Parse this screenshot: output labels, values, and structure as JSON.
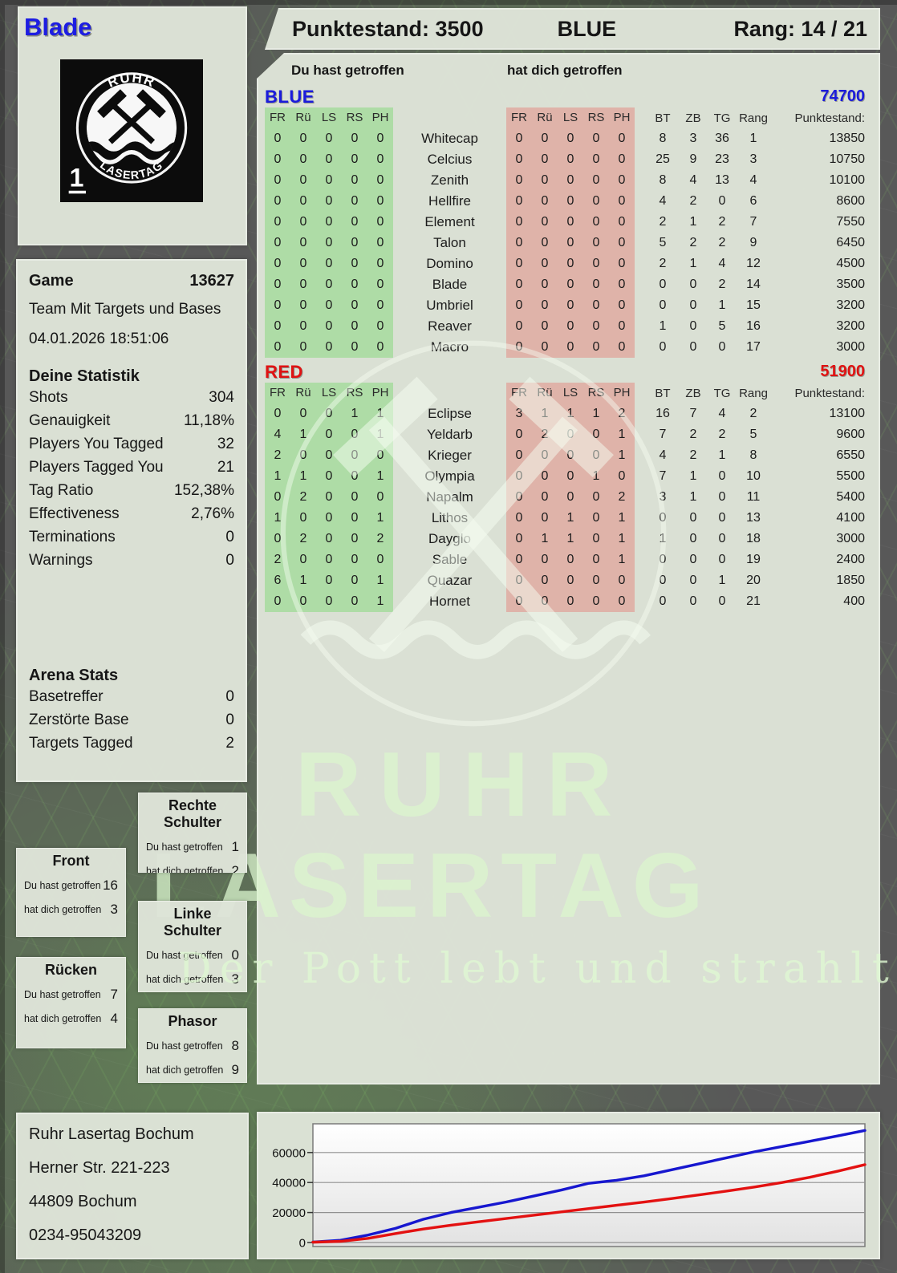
{
  "player": {
    "name": "Blade"
  },
  "logo": {
    "arc_top": "RUHR",
    "arc_bottom": "LASERTAG",
    "badge": "1"
  },
  "header": {
    "punktestand": "Punktestand: 3500",
    "team": "BLUE",
    "rang": "Rang: 14 / 21"
  },
  "captions": {
    "given": "Du hast getroffen",
    "taken": "hat dich getroffen"
  },
  "hit_columns": [
    "FR",
    "Rü",
    "LS",
    "RS",
    "PH"
  ],
  "score_columns": {
    "bt": "BT",
    "zb": "ZB",
    "tg": "TG",
    "rang": "Rang",
    "punkte": "Punktestand:"
  },
  "teams": [
    {
      "name": "BLUE",
      "color": "#1b1bdc",
      "total": "74700",
      "rows": [
        {
          "given": [
            0,
            0,
            0,
            0,
            0
          ],
          "name": "Whitecap",
          "taken": [
            0,
            0,
            0,
            0,
            0
          ],
          "bt": 8,
          "zb": 3,
          "tg": 36,
          "rang": 1,
          "punkte": "13850"
        },
        {
          "given": [
            0,
            0,
            0,
            0,
            0
          ],
          "name": "Celcius",
          "taken": [
            0,
            0,
            0,
            0,
            0
          ],
          "bt": 25,
          "zb": 9,
          "tg": 23,
          "rang": 3,
          "punkte": "10750"
        },
        {
          "given": [
            0,
            0,
            0,
            0,
            0
          ],
          "name": "Zenith",
          "taken": [
            0,
            0,
            0,
            0,
            0
          ],
          "bt": 8,
          "zb": 4,
          "tg": 13,
          "rang": 4,
          "punkte": "10100"
        },
        {
          "given": [
            0,
            0,
            0,
            0,
            0
          ],
          "name": "Hellfire",
          "taken": [
            0,
            0,
            0,
            0,
            0
          ],
          "bt": 4,
          "zb": 2,
          "tg": 0,
          "rang": 6,
          "punkte": "8600"
        },
        {
          "given": [
            0,
            0,
            0,
            0,
            0
          ],
          "name": "Element",
          "taken": [
            0,
            0,
            0,
            0,
            0
          ],
          "bt": 2,
          "zb": 1,
          "tg": 2,
          "rang": 7,
          "punkte": "7550"
        },
        {
          "given": [
            0,
            0,
            0,
            0,
            0
          ],
          "name": "Talon",
          "taken": [
            0,
            0,
            0,
            0,
            0
          ],
          "bt": 5,
          "zb": 2,
          "tg": 2,
          "rang": 9,
          "punkte": "6450"
        },
        {
          "given": [
            0,
            0,
            0,
            0,
            0
          ],
          "name": "Domino",
          "taken": [
            0,
            0,
            0,
            0,
            0
          ],
          "bt": 2,
          "zb": 1,
          "tg": 4,
          "rang": 12,
          "punkte": "4500"
        },
        {
          "given": [
            0,
            0,
            0,
            0,
            0
          ],
          "name": "Blade",
          "taken": [
            0,
            0,
            0,
            0,
            0
          ],
          "bt": 0,
          "zb": 0,
          "tg": 2,
          "rang": 14,
          "punkte": "3500"
        },
        {
          "given": [
            0,
            0,
            0,
            0,
            0
          ],
          "name": "Umbriel",
          "taken": [
            0,
            0,
            0,
            0,
            0
          ],
          "bt": 0,
          "zb": 0,
          "tg": 1,
          "rang": 15,
          "punkte": "3200"
        },
        {
          "given": [
            0,
            0,
            0,
            0,
            0
          ],
          "name": "Reaver",
          "taken": [
            0,
            0,
            0,
            0,
            0
          ],
          "bt": 1,
          "zb": 0,
          "tg": 5,
          "rang": 16,
          "punkte": "3200"
        },
        {
          "given": [
            0,
            0,
            0,
            0,
            0
          ],
          "name": "Macro",
          "taken": [
            0,
            0,
            0,
            0,
            0
          ],
          "bt": 0,
          "zb": 0,
          "tg": 0,
          "rang": 17,
          "punkte": "3000"
        }
      ]
    },
    {
      "name": "RED",
      "color": "#e01212",
      "total": "51900",
      "rows": [
        {
          "given": [
            0,
            0,
            0,
            1,
            1
          ],
          "name": "Eclipse",
          "taken": [
            3,
            1,
            1,
            1,
            2
          ],
          "bt": 16,
          "zb": 7,
          "tg": 4,
          "rang": 2,
          "punkte": "13100"
        },
        {
          "given": [
            4,
            1,
            0,
            0,
            1
          ],
          "name": "Yeldarb",
          "taken": [
            0,
            2,
            0,
            0,
            1
          ],
          "bt": 7,
          "zb": 2,
          "tg": 2,
          "rang": 5,
          "punkte": "9600"
        },
        {
          "given": [
            2,
            0,
            0,
            0,
            0
          ],
          "name": "Krieger",
          "taken": [
            0,
            0,
            0,
            0,
            1
          ],
          "bt": 4,
          "zb": 2,
          "tg": 1,
          "rang": 8,
          "punkte": "6550"
        },
        {
          "given": [
            1,
            1,
            0,
            0,
            1
          ],
          "name": "Olympia",
          "taken": [
            0,
            0,
            0,
            1,
            0
          ],
          "bt": 7,
          "zb": 1,
          "tg": 0,
          "rang": 10,
          "punkte": "5500"
        },
        {
          "given": [
            0,
            2,
            0,
            0,
            0
          ],
          "name": "Napalm",
          "taken": [
            0,
            0,
            0,
            0,
            2
          ],
          "bt": 3,
          "zb": 1,
          "tg": 0,
          "rang": 11,
          "punkte": "5400"
        },
        {
          "given": [
            1,
            0,
            0,
            0,
            1
          ],
          "name": "Lithos",
          "taken": [
            0,
            0,
            1,
            0,
            1
          ],
          "bt": 0,
          "zb": 0,
          "tg": 0,
          "rang": 13,
          "punkte": "4100"
        },
        {
          "given": [
            0,
            2,
            0,
            0,
            2
          ],
          "name": "Dayglo",
          "taken": [
            0,
            1,
            1,
            0,
            1
          ],
          "bt": 1,
          "zb": 0,
          "tg": 0,
          "rang": 18,
          "punkte": "3000"
        },
        {
          "given": [
            2,
            0,
            0,
            0,
            0
          ],
          "name": "Sable",
          "taken": [
            0,
            0,
            0,
            0,
            1
          ],
          "bt": 0,
          "zb": 0,
          "tg": 0,
          "rang": 19,
          "punkte": "2400"
        },
        {
          "given": [
            6,
            1,
            0,
            0,
            1
          ],
          "name": "Quazar",
          "taken": [
            0,
            0,
            0,
            0,
            0
          ],
          "bt": 0,
          "zb": 0,
          "tg": 1,
          "rang": 20,
          "punkte": "1850"
        },
        {
          "given": [
            0,
            0,
            0,
            0,
            1
          ],
          "name": "Hornet",
          "taken": [
            0,
            0,
            0,
            0,
            0
          ],
          "bt": 0,
          "zb": 0,
          "tg": 0,
          "rang": 21,
          "punkte": "400"
        }
      ]
    }
  ],
  "game": {
    "label": "Game",
    "id": "13627",
    "mode": "Team Mit Targets und Bases",
    "datetime": "04.01.2026 18:51:06"
  },
  "your_stats": {
    "title": "Deine Statistik",
    "rows": [
      [
        "Shots",
        "304"
      ],
      [
        "Genauigkeit",
        "11,18%"
      ],
      [
        "Players You Tagged",
        "32"
      ],
      [
        "Players Tagged You",
        "21"
      ],
      [
        "Tag Ratio",
        "152,38%"
      ],
      [
        "Effectiveness",
        "2,76%"
      ],
      [
        "Terminations",
        "0"
      ],
      [
        "Warnings",
        "0"
      ]
    ]
  },
  "arena_stats": {
    "title": "Arena Stats",
    "rows": [
      [
        "Basetreffer",
        "0"
      ],
      [
        "Zerstörte Base",
        "0"
      ],
      [
        "Targets Tagged",
        "2"
      ]
    ]
  },
  "body_boxes": [
    {
      "title": "Rechte Schulter",
      "given": "1",
      "taken": "2"
    },
    {
      "title": "Front",
      "given": "16",
      "taken": "3"
    },
    {
      "title": "Linke Schulter",
      "given": "0",
      "taken": "3"
    },
    {
      "title": "Rücken",
      "given": "7",
      "taken": "4"
    },
    {
      "title": "Phasor",
      "given": "8",
      "taken": "9"
    }
  ],
  "address": [
    "Ruhr Lasertag Bochum",
    "Herner Str. 221-223",
    "44809 Bochum",
    "0234-95043209"
  ],
  "watermark": {
    "line1": "RUHR",
    "line2": "LASERTAG",
    "tagline": "Der Pott lebt und strahlt"
  },
  "colors": {
    "blue": "#1b1bdc",
    "red": "#e01212",
    "green_block": "#aedca6",
    "red_block": "#dfb3a9"
  },
  "chart_data": {
    "type": "line",
    "title": "",
    "xlabel": "",
    "ylabel": "",
    "x": [
      0,
      0.05,
      0.1,
      0.15,
      0.2,
      0.25,
      0.3,
      0.35,
      0.4,
      0.45,
      0.5,
      0.55,
      0.6,
      0.65,
      0.7,
      0.75,
      0.8,
      0.85,
      0.9,
      0.95,
      1
    ],
    "series": [
      {
        "name": "BLUE",
        "color": "#1717cf",
        "values": [
          300,
          1500,
          5000,
          9500,
          15500,
          20000,
          23500,
          27000,
          31000,
          35000,
          39500,
          41500,
          44500,
          48500,
          52500,
          56500,
          60500,
          64000,
          67500,
          71000,
          74700
        ]
      },
      {
        "name": "RED",
        "color": "#e31111",
        "values": [
          200,
          800,
          2800,
          6000,
          9000,
          11500,
          13800,
          16000,
          18200,
          20400,
          22600,
          24800,
          27000,
          29300,
          31800,
          34300,
          37000,
          40000,
          43500,
          47500,
          51900
        ]
      }
    ],
    "yticks": [
      0,
      20000,
      40000,
      60000
    ],
    "ylim": [
      0,
      79000
    ],
    "grid": "horizontal",
    "legend": "none"
  }
}
